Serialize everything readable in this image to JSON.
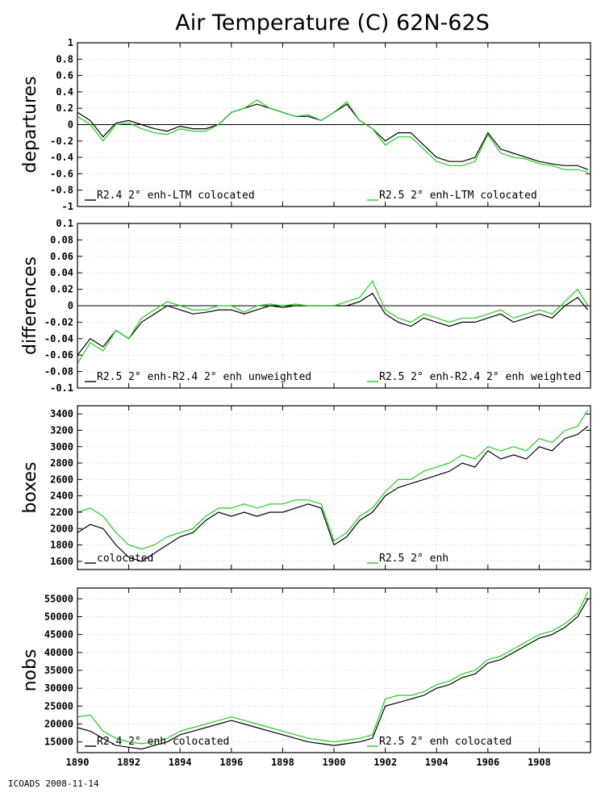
{
  "title": "Air Temperature (C) 62N-62S",
  "footer": "ICOADS 2008-11-14",
  "colors": {
    "series_black": "#000000",
    "series_green": "#22cc22",
    "grid": "#b0b0b0",
    "frame": "#000000"
  },
  "chart_data": [
    {
      "type": "line",
      "ylabel": "departures",
      "ylim": [
        -1,
        1
      ],
      "yticks": [
        -1,
        -0.8,
        -0.6,
        -0.4,
        -0.2,
        0,
        0.2,
        0.4,
        0.6,
        0.8,
        1
      ],
      "xlim": [
        1890,
        1910
      ],
      "zero_line": true,
      "grid": true,
      "series": [
        {
          "name": "R2.4 2° enh-LTM colocated",
          "color": "#000000",
          "x": [
            1890,
            1890.5,
            1891,
            1891.5,
            1892,
            1892.5,
            1893,
            1893.5,
            1894,
            1894.5,
            1895,
            1895.5,
            1896,
            1896.5,
            1897,
            1897.5,
            1898,
            1898.5,
            1899,
            1899.5,
            1900,
            1900.5,
            1901,
            1901.5,
            1902,
            1902.5,
            1903,
            1903.5,
            1904,
            1904.5,
            1905,
            1905.5,
            1906,
            1906.5,
            1907,
            1907.5,
            1908,
            1908.5,
            1909,
            1909.5,
            1909.9
          ],
          "y": [
            0.15,
            0.05,
            -0.15,
            0.02,
            0.05,
            0.0,
            -0.05,
            -0.08,
            -0.02,
            -0.05,
            -0.05,
            0.0,
            0.15,
            0.2,
            0.25,
            0.2,
            0.15,
            0.1,
            0.1,
            0.05,
            0.15,
            0.25,
            0.05,
            -0.05,
            -0.2,
            -0.1,
            -0.1,
            -0.25,
            -0.4,
            -0.45,
            -0.45,
            -0.4,
            -0.1,
            -0.3,
            -0.35,
            -0.4,
            -0.45,
            -0.48,
            -0.5,
            -0.5,
            -0.55
          ]
        },
        {
          "name": "R2.5 2° enh-LTM colocated",
          "color": "#22cc22",
          "x": [
            1890,
            1890.5,
            1891,
            1891.5,
            1892,
            1892.5,
            1893,
            1893.5,
            1894,
            1894.5,
            1895,
            1895.5,
            1896,
            1896.5,
            1897,
            1897.5,
            1898,
            1898.5,
            1899,
            1899.5,
            1900,
            1900.5,
            1901,
            1901.5,
            1902,
            1902.5,
            1903,
            1903.5,
            1904,
            1904.5,
            1905,
            1905.5,
            1906,
            1906.5,
            1907,
            1907.5,
            1908,
            1908.5,
            1909,
            1909.5,
            1909.9
          ],
          "y": [
            0.1,
            0.0,
            -0.2,
            0.0,
            0.02,
            -0.05,
            -0.1,
            -0.12,
            -0.05,
            -0.08,
            -0.08,
            0.0,
            0.15,
            0.2,
            0.3,
            0.2,
            0.15,
            0.1,
            0.12,
            0.05,
            0.15,
            0.28,
            0.05,
            -0.05,
            -0.25,
            -0.15,
            -0.15,
            -0.3,
            -0.45,
            -0.5,
            -0.5,
            -0.45,
            -0.12,
            -0.35,
            -0.4,
            -0.42,
            -0.48,
            -0.5,
            -0.55,
            -0.55,
            -0.58
          ]
        }
      ]
    },
    {
      "type": "line",
      "ylabel": "differences",
      "ylim": [
        -0.1,
        0.1
      ],
      "yticks": [
        -0.1,
        -0.08,
        -0.06,
        -0.04,
        -0.02,
        0,
        0.02,
        0.04,
        0.06,
        0.08,
        0.1
      ],
      "xlim": [
        1890,
        1910
      ],
      "zero_line": true,
      "grid": true,
      "series": [
        {
          "name": "R2.5 2° enh-R2.4 2° enh unweighted",
          "color": "#000000",
          "x": [
            1890,
            1890.5,
            1891,
            1891.5,
            1892,
            1892.5,
            1893,
            1893.5,
            1894,
            1894.5,
            1895,
            1895.5,
            1896,
            1896.5,
            1897,
            1897.5,
            1898,
            1898.5,
            1899,
            1899.5,
            1900,
            1900.5,
            1901,
            1901.5,
            1902,
            1902.5,
            1903,
            1903.5,
            1904,
            1904.5,
            1905,
            1905.5,
            1906,
            1906.5,
            1907,
            1907.5,
            1908,
            1908.5,
            1909,
            1909.5,
            1909.9
          ],
          "y": [
            -0.06,
            -0.04,
            -0.05,
            -0.03,
            -0.04,
            -0.02,
            -0.01,
            0.0,
            -0.005,
            -0.01,
            -0.008,
            -0.005,
            -0.005,
            -0.01,
            -0.005,
            0.0,
            -0.002,
            0.0,
            0.0,
            0.0,
            0.0,
            0.0,
            0.005,
            0.015,
            -0.01,
            -0.02,
            -0.025,
            -0.015,
            -0.02,
            -0.025,
            -0.02,
            -0.02,
            -0.015,
            -0.01,
            -0.02,
            -0.015,
            -0.01,
            -0.015,
            0.0,
            0.01,
            -0.005
          ]
        },
        {
          "name": "R2.5 2° enh-R2.4 2° enh weighted",
          "color": "#22cc22",
          "x": [
            1890,
            1890.5,
            1891,
            1891.5,
            1892,
            1892.5,
            1893,
            1893.5,
            1894,
            1894.5,
            1895,
            1895.5,
            1896,
            1896.5,
            1897,
            1897.5,
            1898,
            1898.5,
            1899,
            1899.5,
            1900,
            1900.5,
            1901,
            1901.5,
            1902,
            1902.5,
            1903,
            1903.5,
            1904,
            1904.5,
            1905,
            1905.5,
            1906,
            1906.5,
            1907,
            1907.5,
            1908,
            1908.5,
            1909,
            1909.5,
            1909.9
          ],
          "y": [
            -0.07,
            -0.045,
            -0.055,
            -0.03,
            -0.04,
            -0.015,
            -0.005,
            0.005,
            0.0,
            -0.005,
            -0.005,
            0.0,
            0.0,
            -0.008,
            0.0,
            0.002,
            0.0,
            0.002,
            0.0,
            0.0,
            0.0,
            0.005,
            0.01,
            0.03,
            -0.005,
            -0.015,
            -0.02,
            -0.01,
            -0.015,
            -0.02,
            -0.015,
            -0.015,
            -0.01,
            -0.005,
            -0.015,
            -0.01,
            -0.005,
            -0.01,
            0.005,
            0.02,
            0.0
          ]
        }
      ]
    },
    {
      "type": "line",
      "ylabel": "boxes",
      "ylim": [
        1500,
        3500
      ],
      "yticks": [
        1600,
        1800,
        2000,
        2200,
        2400,
        2600,
        2800,
        3000,
        3200,
        3400
      ],
      "xlim": [
        1890,
        1910
      ],
      "zero_line": false,
      "grid": true,
      "series": [
        {
          "name": "colocated",
          "color": "#000000",
          "x": [
            1890,
            1890.5,
            1891,
            1891.5,
            1892,
            1892.5,
            1893,
            1893.5,
            1894,
            1894.5,
            1895,
            1895.5,
            1896,
            1896.5,
            1897,
            1897.5,
            1898,
            1898.5,
            1899,
            1899.5,
            1900,
            1900.5,
            1901,
            1901.5,
            1902,
            1902.5,
            1903,
            1903.5,
            1904,
            1904.5,
            1905,
            1905.5,
            1906,
            1906.5,
            1907,
            1907.5,
            1908,
            1908.5,
            1909,
            1909.5,
            1909.9
          ],
          "y": [
            1950,
            2050,
            2000,
            1800,
            1650,
            1600,
            1700,
            1800,
            1900,
            1950,
            2100,
            2200,
            2150,
            2200,
            2150,
            2200,
            2200,
            2250,
            2300,
            2250,
            1800,
            1900,
            2100,
            2200,
            2400,
            2500,
            2550,
            2600,
            2650,
            2700,
            2800,
            2750,
            2950,
            2850,
            2900,
            2850,
            3000,
            2950,
            3100,
            3150,
            3250
          ]
        },
        {
          "name": "R2.5 2° enh",
          "color": "#22cc22",
          "x": [
            1890,
            1890.5,
            1891,
            1891.5,
            1892,
            1892.5,
            1893,
            1893.5,
            1894,
            1894.5,
            1895,
            1895.5,
            1896,
            1896.5,
            1897,
            1897.5,
            1898,
            1898.5,
            1899,
            1899.5,
            1900,
            1900.5,
            1901,
            1901.5,
            1902,
            1902.5,
            1903,
            1903.5,
            1904,
            1904.5,
            1905,
            1905.5,
            1906,
            1906.5,
            1907,
            1907.5,
            1908,
            1908.5,
            1909,
            1909.5,
            1909.9
          ],
          "y": [
            2200,
            2250,
            2150,
            1950,
            1800,
            1750,
            1800,
            1900,
            1950,
            2000,
            2150,
            2250,
            2250,
            2300,
            2250,
            2300,
            2300,
            2350,
            2350,
            2300,
            1850,
            1950,
            2150,
            2250,
            2450,
            2600,
            2600,
            2700,
            2750,
            2800,
            2900,
            2850,
            3000,
            2950,
            3000,
            2950,
            3100,
            3050,
            3200,
            3250,
            3450
          ]
        }
      ]
    },
    {
      "type": "line",
      "ylabel": "nobs",
      "ylim": [
        12000,
        58000
      ],
      "yticks": [
        15000,
        20000,
        25000,
        30000,
        35000,
        40000,
        45000,
        50000,
        55000
      ],
      "xlim": [
        1890,
        1910
      ],
      "xticks": [
        1890,
        1892,
        1894,
        1896,
        1898,
        1900,
        1902,
        1904,
        1906,
        1908
      ],
      "zero_line": false,
      "grid": true,
      "series": [
        {
          "name": "R2.4 2° enh colocated",
          "color": "#000000",
          "x": [
            1890,
            1890.5,
            1891,
            1891.5,
            1892,
            1892.5,
            1893,
            1893.5,
            1894,
            1894.5,
            1895,
            1895.5,
            1896,
            1896.5,
            1897,
            1897.5,
            1898,
            1898.5,
            1899,
            1899.5,
            1900,
            1900.5,
            1901,
            1901.5,
            1902,
            1902.5,
            1903,
            1903.5,
            1904,
            1904.5,
            1905,
            1905.5,
            1906,
            1906.5,
            1907,
            1907.5,
            1908,
            1908.5,
            1909,
            1909.5,
            1909.9
          ],
          "y": [
            19000,
            18000,
            16000,
            14000,
            13500,
            13000,
            14000,
            15000,
            17000,
            18000,
            19000,
            20000,
            21000,
            20000,
            19000,
            18000,
            17000,
            16000,
            15000,
            14500,
            14000,
            14500,
            15000,
            16000,
            25000,
            26000,
            27000,
            28000,
            30000,
            31000,
            33000,
            34000,
            37000,
            38000,
            40000,
            42000,
            44000,
            45000,
            47000,
            50000,
            55000
          ]
        },
        {
          "name": "R2.5 2° enh colocated",
          "color": "#22cc22",
          "x": [
            1890,
            1890.5,
            1891,
            1891.5,
            1892,
            1892.5,
            1893,
            1893.5,
            1894,
            1894.5,
            1895,
            1895.5,
            1896,
            1896.5,
            1897,
            1897.5,
            1898,
            1898.5,
            1899,
            1899.5,
            1900,
            1900.5,
            1901,
            1901.5,
            1902,
            1902.5,
            1903,
            1903.5,
            1904,
            1904.5,
            1905,
            1905.5,
            1906,
            1906.5,
            1907,
            1907.5,
            1908,
            1908.5,
            1909,
            1909.5,
            1909.9
          ],
          "y": [
            22000,
            22500,
            18000,
            16000,
            15000,
            14500,
            15000,
            16000,
            18000,
            19000,
            20000,
            21000,
            22000,
            21000,
            20000,
            19000,
            18000,
            17000,
            16000,
            15500,
            15000,
            15500,
            16000,
            17000,
            27000,
            28000,
            28000,
            29000,
            31000,
            32000,
            34000,
            35000,
            38000,
            39000,
            41000,
            43000,
            45000,
            46000,
            48000,
            51000,
            57000
          ]
        }
      ]
    }
  ]
}
